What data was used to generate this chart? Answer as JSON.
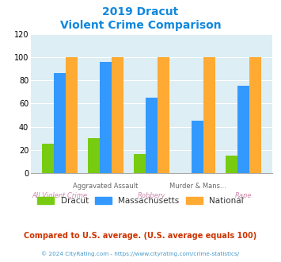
{
  "title_line1": "2019 Dracut",
  "title_line2": "Violent Crime Comparison",
  "categories": [
    "All Violent Crime",
    "Aggravated Assault",
    "Robbery",
    "Murder & Mans...",
    "Rape"
  ],
  "label_top": [
    "",
    "Aggravated Assault",
    "",
    "Murder & Mans...",
    ""
  ],
  "label_bottom": [
    "All Violent Crime",
    "",
    "Robbery",
    "",
    "Rape"
  ],
  "dracut": [
    25,
    30,
    16,
    0,
    15
  ],
  "massachusetts": [
    86,
    96,
    65,
    45,
    75
  ],
  "national": [
    100,
    100,
    100,
    100,
    100
  ],
  "dracut_color": "#77cc11",
  "massachusetts_color": "#3399ff",
  "national_color": "#ffaa33",
  "ylim": [
    0,
    120
  ],
  "yticks": [
    0,
    20,
    40,
    60,
    80,
    100,
    120
  ],
  "bg_color": "#ddeef5",
  "title_color": "#1188dd",
  "top_label_color": "#666666",
  "bottom_label_color": "#cc88aa",
  "footer_text": "Compared to U.S. average. (U.S. average equals 100)",
  "footer_color": "#cc3300",
  "copyright_text": "© 2024 CityRating.com - https://www.cityrating.com/crime-statistics/",
  "copyright_color": "#4499cc",
  "legend_labels": [
    "Dracut",
    "Massachusetts",
    "National"
  ],
  "legend_text_color": "#333333"
}
